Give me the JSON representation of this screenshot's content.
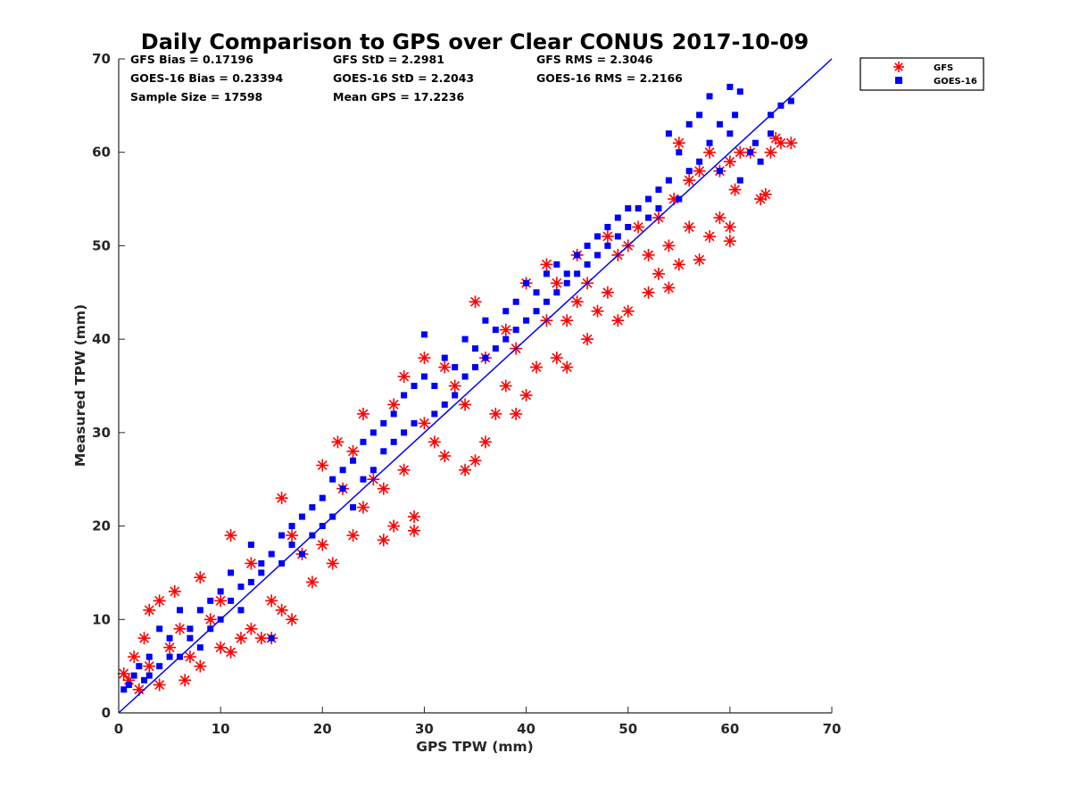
{
  "chart_data": {
    "type": "scatter",
    "title": "Daily Comparison to GPS over Clear CONUS 2017-10-09",
    "xlabel": "GPS TPW (mm)",
    "ylabel": "Measured TPW (mm)",
    "xlim": [
      0,
      70
    ],
    "ylim": [
      0,
      70
    ],
    "xticks": [
      "0",
      "10",
      "20",
      "30",
      "40",
      "50",
      "60",
      "70"
    ],
    "yticks": [
      "0",
      "10",
      "20",
      "30",
      "40",
      "50",
      "60",
      "70"
    ],
    "stats": [
      "GFS Bias = 0.17196",
      "GFS StD = 2.2981",
      "GFS RMS = 2.3046",
      "GOES-16 Bias = 0.23394",
      "GOES-16 StD = 2.2043",
      "GOES-16 RMS = 2.2166",
      "Sample Size = 17598",
      "Mean GPS = 17.2236"
    ],
    "reference_line": {
      "x": [
        0,
        70
      ],
      "y": [
        0,
        70
      ],
      "color": "#0000ff"
    },
    "legend": {
      "placement": "outside-top-right"
    },
    "series": [
      {
        "name": "GFS",
        "marker": "asterisk",
        "color": "#ff0000",
        "points": [
          [
            0.5,
            4.2
          ],
          [
            1,
            3.5
          ],
          [
            1.5,
            6
          ],
          [
            2,
            2.5
          ],
          [
            2.5,
            8
          ],
          [
            3,
            5
          ],
          [
            3,
            11
          ],
          [
            4,
            12
          ],
          [
            4,
            3
          ],
          [
            5,
            7
          ],
          [
            5.5,
            13
          ],
          [
            6,
            9
          ],
          [
            6.5,
            3.5
          ],
          [
            7,
            6
          ],
          [
            8,
            14.5
          ],
          [
            8,
            5
          ],
          [
            9,
            10
          ],
          [
            10,
            12
          ],
          [
            10,
            7
          ],
          [
            11,
            19
          ],
          [
            11,
            6.5
          ],
          [
            12,
            8
          ],
          [
            13,
            16
          ],
          [
            13,
            9
          ],
          [
            14,
            8
          ],
          [
            15,
            12
          ],
          [
            15,
            8
          ],
          [
            16,
            23
          ],
          [
            16,
            11
          ],
          [
            17,
            10
          ],
          [
            17,
            19
          ],
          [
            18,
            17
          ],
          [
            19,
            14
          ],
          [
            20,
            26.5
          ],
          [
            20,
            18
          ],
          [
            21,
            16
          ],
          [
            21.5,
            29
          ],
          [
            22,
            24
          ],
          [
            23,
            19
          ],
          [
            23,
            28
          ],
          [
            24,
            32
          ],
          [
            24,
            22
          ],
          [
            25,
            25
          ],
          [
            26,
            24
          ],
          [
            26,
            18.5
          ],
          [
            27,
            33
          ],
          [
            27,
            20
          ],
          [
            28,
            26
          ],
          [
            28,
            36
          ],
          [
            29,
            21
          ],
          [
            29,
            19.5
          ],
          [
            30,
            31
          ],
          [
            30,
            38
          ],
          [
            31,
            29
          ],
          [
            32,
            37
          ],
          [
            32,
            27.5
          ],
          [
            33,
            35
          ],
          [
            34,
            26
          ],
          [
            34,
            33
          ],
          [
            35,
            27
          ],
          [
            35,
            44
          ],
          [
            36,
            38
          ],
          [
            36,
            29
          ],
          [
            37,
            32
          ],
          [
            38,
            35
          ],
          [
            38,
            41
          ],
          [
            39,
            32
          ],
          [
            39,
            39
          ],
          [
            40,
            34
          ],
          [
            40,
            46
          ],
          [
            41,
            37
          ],
          [
            42,
            48
          ],
          [
            42,
            42
          ],
          [
            43,
            38
          ],
          [
            43,
            46
          ],
          [
            44,
            37
          ],
          [
            44,
            42
          ],
          [
            45,
            49
          ],
          [
            45,
            44
          ],
          [
            46,
            40
          ],
          [
            46,
            46
          ],
          [
            47,
            43
          ],
          [
            48,
            45
          ],
          [
            48,
            51
          ],
          [
            49,
            42
          ],
          [
            49,
            49
          ],
          [
            50,
            50
          ],
          [
            50,
            43
          ],
          [
            51,
            52
          ],
          [
            52,
            49
          ],
          [
            52,
            45
          ],
          [
            53,
            53
          ],
          [
            53,
            47
          ],
          [
            54,
            45.5
          ],
          [
            54,
            50
          ],
          [
            54.5,
            55
          ],
          [
            55,
            61
          ],
          [
            55,
            48
          ],
          [
            56,
            52
          ],
          [
            56,
            57
          ],
          [
            57,
            48.5
          ],
          [
            57,
            58
          ],
          [
            58,
            51
          ],
          [
            58,
            60
          ],
          [
            59,
            53
          ],
          [
            59,
            58
          ],
          [
            60,
            50.5
          ],
          [
            60,
            52
          ],
          [
            60,
            59
          ],
          [
            60.5,
            56
          ],
          [
            61,
            60
          ],
          [
            62,
            60
          ],
          [
            63,
            55
          ],
          [
            63.5,
            55.5
          ],
          [
            64,
            60
          ],
          [
            64.5,
            61.5
          ],
          [
            65,
            61
          ],
          [
            66,
            61
          ]
        ]
      },
      {
        "name": "GOES-16",
        "marker": "square",
        "color": "#0000ff",
        "points": [
          [
            0.5,
            2.5
          ],
          [
            1,
            3
          ],
          [
            1.5,
            4
          ],
          [
            2,
            5
          ],
          [
            2.5,
            3.5
          ],
          [
            3,
            6
          ],
          [
            3,
            4
          ],
          [
            4,
            9
          ],
          [
            4,
            5
          ],
          [
            5,
            6
          ],
          [
            5,
            8
          ],
          [
            6,
            11
          ],
          [
            6,
            6
          ],
          [
            7,
            9
          ],
          [
            7,
            8
          ],
          [
            8,
            11
          ],
          [
            8,
            7
          ],
          [
            9,
            12
          ],
          [
            9,
            9
          ],
          [
            10,
            10
          ],
          [
            10,
            13
          ],
          [
            11,
            12
          ],
          [
            11,
            15
          ],
          [
            12,
            11
          ],
          [
            12,
            13.5
          ],
          [
            13,
            14
          ],
          [
            13,
            18
          ],
          [
            14,
            16
          ],
          [
            14,
            15
          ],
          [
            15,
            17
          ],
          [
            15,
            8
          ],
          [
            16,
            19
          ],
          [
            16,
            16
          ],
          [
            17,
            20
          ],
          [
            17,
            18
          ],
          [
            18,
            21
          ],
          [
            18,
            17
          ],
          [
            19,
            22
          ],
          [
            19,
            19
          ],
          [
            20,
            23
          ],
          [
            20,
            20
          ],
          [
            21,
            25
          ],
          [
            21,
            21
          ],
          [
            22,
            26
          ],
          [
            22,
            24
          ],
          [
            23,
            27
          ],
          [
            23,
            22
          ],
          [
            24,
            29
          ],
          [
            24,
            25
          ],
          [
            25,
            30
          ],
          [
            25,
            26
          ],
          [
            26,
            31
          ],
          [
            26,
            28
          ],
          [
            27,
            32
          ],
          [
            27,
            29
          ],
          [
            28,
            34
          ],
          [
            28,
            30
          ],
          [
            29,
            35
          ],
          [
            29,
            31
          ],
          [
            30,
            36
          ],
          [
            30,
            40.5
          ],
          [
            31,
            35
          ],
          [
            31,
            32
          ],
          [
            32,
            38
          ],
          [
            32,
            33
          ],
          [
            33,
            37
          ],
          [
            33,
            34
          ],
          [
            34,
            40
          ],
          [
            34,
            36
          ],
          [
            35,
            39
          ],
          [
            35,
            37
          ],
          [
            36,
            42
          ],
          [
            36,
            38
          ],
          [
            37,
            41
          ],
          [
            37,
            39
          ],
          [
            38,
            43
          ],
          [
            38,
            40
          ],
          [
            39,
            44
          ],
          [
            39,
            41
          ],
          [
            40,
            46
          ],
          [
            40,
            42
          ],
          [
            41,
            45
          ],
          [
            41,
            43
          ],
          [
            42,
            47
          ],
          [
            42,
            44
          ],
          [
            43,
            48
          ],
          [
            43,
            45
          ],
          [
            44,
            47
          ],
          [
            44,
            46
          ],
          [
            45,
            49
          ],
          [
            45,
            47
          ],
          [
            46,
            50
          ],
          [
            46,
            48
          ],
          [
            47,
            51
          ],
          [
            47,
            49
          ],
          [
            48,
            52
          ],
          [
            48,
            50
          ],
          [
            49,
            53
          ],
          [
            49,
            51
          ],
          [
            50,
            54
          ],
          [
            50,
            52
          ],
          [
            51,
            54
          ],
          [
            52,
            55
          ],
          [
            52,
            53
          ],
          [
            53,
            56
          ],
          [
            53,
            54
          ],
          [
            54,
            57
          ],
          [
            54,
            62
          ],
          [
            55,
            55
          ],
          [
            55,
            60
          ],
          [
            56,
            58
          ],
          [
            56,
            63
          ],
          [
            57,
            59
          ],
          [
            57,
            64
          ],
          [
            58,
            61
          ],
          [
            58,
            66
          ],
          [
            59,
            58
          ],
          [
            59,
            63
          ],
          [
            60,
            67
          ],
          [
            60,
            62
          ],
          [
            60.5,
            64
          ],
          [
            61,
            57
          ],
          [
            61,
            66.5
          ],
          [
            62,
            60
          ],
          [
            62.5,
            61
          ],
          [
            63,
            59
          ],
          [
            64,
            62
          ],
          [
            64,
            64
          ],
          [
            65,
            65
          ],
          [
            66,
            65.5
          ]
        ]
      }
    ]
  }
}
